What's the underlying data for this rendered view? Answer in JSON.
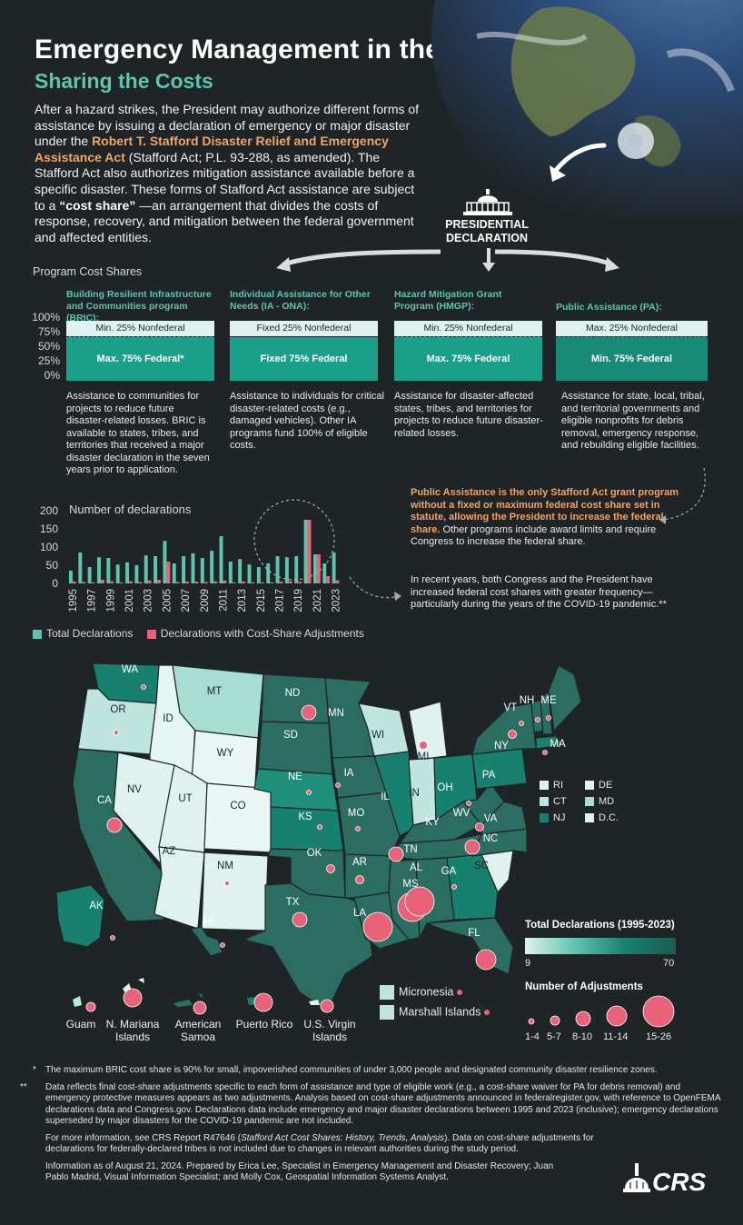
{
  "header": {
    "title": "Emergency Management in the U.S.",
    "subtitle": "Sharing the Costs"
  },
  "intro": {
    "p1": "After a hazard strikes, the President may authorize different forms of assistance by issuing a declaration of emergency or major disaster under the ",
    "act_name": "Robert T. Stafford Disaster Relief and Emergency Assistance Act",
    "p2": " (Stafford Act; P.L. 93-288, as amended). The Stafford Act also authorizes mitigation assistance available before a specific disaster. These forms of Stafford Act assistance are subject to a ",
    "cost_share": "“cost share”",
    "p3": " —an arrangement that divides the costs of response, recovery, and mitigation between the federal government and affected entities."
  },
  "declaration_label": "PRESIDENTIAL DECLARATION",
  "program_cost_shares": {
    "heading": "Program Cost Shares",
    "y_ticks": [
      "100%",
      "75%",
      "50%",
      "25%",
      "0%"
    ],
    "programs": [
      {
        "title": "Building Resilient Infrastructure and Communities program  (BRIC):",
        "top_label": "Min. 25% Nonfederal",
        "bottom_label": "Max. 75% Federal*",
        "federal_share": 75,
        "description": "Assistance to communities for projects to reduce future disaster-related losses. BRIC is available to states, tribes, and territories that received a major disaster declaration in the seven years prior to application."
      },
      {
        "title": "Individual Assistance for Other Needs (IA - ONA):",
        "top_label": "Fixed 25% Nonfederal",
        "bottom_label": "Fixed 75% Federal",
        "federal_share": 75,
        "description": "Assistance to individuals for critical disaster-related costs (e.g., damaged vehicles). Other IA programs fund 100% of eligible costs."
      },
      {
        "title": "Hazard Mitigation Grant Program (HMGP):",
        "top_label": "Min. 25% Nonfederal",
        "bottom_label": "Max. 75% Federal",
        "federal_share": 75,
        "description": "Assistance for disaster-affected states, tribes, and territories for projects to reduce future disaster-related losses."
      },
      {
        "title": "Public Assistance (PA):",
        "top_label": "Max. 25% Nonfederal",
        "bottom_label": "Min. 75% Federal",
        "federal_share": 75,
        "description": "Assistance for state, local, tribal, and territorial governments and eligible nonprofits for debris removal, emergency response, and rebuilding eligible facilities."
      }
    ]
  },
  "pa_note": {
    "highlight": "Public Assistance is the only Stafford Act grant program without a fixed or maximum federal cost share set in statute, allowing the President to increase the federal share.",
    "rest": " Other programs include award limits and require Congress to increase the federal share."
  },
  "recent_note": "In recent years, both Congress and the President have increased federal cost shares with greater frequency—particularly during the years of the COVID-19 pandemic.**",
  "chart_data": {
    "type": "bar",
    "title": "Number of declarations",
    "categories": [
      "1995",
      "1996",
      "1997",
      "1998",
      "1999",
      "2000",
      "2001",
      "2002",
      "2003",
      "2004",
      "2005",
      "2006",
      "2007",
      "2008",
      "2009",
      "2010",
      "2011",
      "2012",
      "2013",
      "2014",
      "2015",
      "2016",
      "2017",
      "2018",
      "2019",
      "2020",
      "2021",
      "2022",
      "2023"
    ],
    "x_tick_labels": [
      "1995",
      "1997",
      "1999",
      "2001",
      "2003",
      "2005",
      "2007",
      "2009",
      "2011",
      "2013",
      "2015",
      "2017",
      "2019",
      "2021",
      "2023"
    ],
    "series": [
      {
        "name": "Total Declarations",
        "color": "#5ec4ad",
        "values": [
          35,
          85,
          45,
          72,
          70,
          52,
          58,
          50,
          77,
          75,
          117,
          55,
          75,
          83,
          70,
          90,
          130,
          60,
          67,
          52,
          45,
          55,
          75,
          72,
          75,
          175,
          80,
          55,
          85
        ]
      },
      {
        "name": "Declarations with Cost-Share Adjustments",
        "color": "#e8627a",
        "values": [
          5,
          4,
          3,
          10,
          6,
          3,
          6,
          4,
          8,
          10,
          60,
          4,
          5,
          5,
          4,
          6,
          8,
          3,
          5,
          3,
          3,
          3,
          5,
          6,
          5,
          175,
          80,
          20,
          8
        ]
      }
    ],
    "y_ticks": [
      0,
      50,
      100,
      150,
      200
    ],
    "ylim": [
      0,
      200
    ],
    "legend_position": "bottom"
  },
  "map": {
    "states": [
      {
        "abbr": "WA",
        "adj": 1
      },
      {
        "abbr": "OR",
        "adj": 1
      },
      {
        "abbr": "CA",
        "adj": 3
      },
      {
        "abbr": "ID",
        "adj": 0
      },
      {
        "abbr": "NV",
        "adj": 0
      },
      {
        "abbr": "MT",
        "adj": 0
      },
      {
        "abbr": "WY",
        "adj": 0
      },
      {
        "abbr": "UT",
        "adj": 0
      },
      {
        "abbr": "AZ",
        "adj": 0
      },
      {
        "abbr": "CO",
        "adj": 0
      },
      {
        "abbr": "NM",
        "adj": 1
      },
      {
        "abbr": "ND",
        "adj": 3
      },
      {
        "abbr": "SD",
        "adj": 0
      },
      {
        "abbr": "NE",
        "adj": 1
      },
      {
        "abbr": "KS",
        "adj": 1
      },
      {
        "abbr": "OK",
        "adj": 2
      },
      {
        "abbr": "TX",
        "adj": 3
      },
      {
        "abbr": "MN",
        "adj": 0
      },
      {
        "abbr": "IA",
        "adj": 1
      },
      {
        "abbr": "MO",
        "adj": 1
      },
      {
        "abbr": "AR",
        "adj": 2
      },
      {
        "abbr": "LA",
        "adj": 5
      },
      {
        "abbr": "WI",
        "adj": 0
      },
      {
        "abbr": "IL",
        "adj": 0
      },
      {
        "abbr": "MS",
        "adj": 5
      },
      {
        "abbr": "MI",
        "adj": 2
      },
      {
        "abbr": "IN",
        "adj": 0
      },
      {
        "abbr": "KY",
        "adj": 0
      },
      {
        "abbr": "TN",
        "adj": 3
      },
      {
        "abbr": "AL",
        "adj": 5
      },
      {
        "abbr": "OH",
        "adj": 0
      },
      {
        "abbr": "GA",
        "adj": 1
      },
      {
        "abbr": "FL",
        "adj": 4
      },
      {
        "abbr": "SC",
        "adj": 0
      },
      {
        "abbr": "NC",
        "adj": 3
      },
      {
        "abbr": "VA",
        "adj": 2
      },
      {
        "abbr": "WV",
        "adj": 1
      },
      {
        "abbr": "PA",
        "adj": 0
      },
      {
        "abbr": "NY",
        "adj": 2
      },
      {
        "abbr": "VT",
        "adj": 1
      },
      {
        "abbr": "NH",
        "adj": 1
      },
      {
        "abbr": "ME",
        "adj": 1
      },
      {
        "abbr": "MA",
        "adj": 1
      },
      {
        "abbr": "AK",
        "adj": 1
      },
      {
        "abbr": "HI",
        "adj": 1
      }
    ],
    "small_states": [
      "RI",
      "DE",
      "CT",
      "MD",
      "NJ",
      "D.C."
    ],
    "territories": [
      "Guam",
      "N. Mariana Islands",
      "American Samoa",
      "Puerto Rico",
      "U.S. Virgin Islands"
    ],
    "freely_associated": [
      "Micronesia",
      "Marshall Islands"
    ]
  },
  "legend": {
    "total_title": "Total Declarations (1995-2023)",
    "total_min": "9",
    "total_max": "70",
    "adjust_title": "Number of Adjustments",
    "adjust_bins": [
      "1-4",
      "5-7",
      "8-10",
      "11-14",
      "15-26"
    ]
  },
  "footnotes": {
    "star_mark": "*",
    "star_text": "The maximum BRIC cost share is 90% for small, impoverished communities of under 3,000 people and designated community disaster resilience zones.",
    "dstar_mark": "**",
    "dstar_text": "Data reflects final cost-share adjustments specific to each form of assistance and type of eligible work (e.g., a cost-share waiver for PA for debris removal) and emergency protective measures appears as two adjustments. Analysis based on cost-share adjustments announced in federalregister.gov, with reference to OpenFEMA declarations data and Congress.gov. Declarations data include emergency and major disaster declarations between 1995 and 2023 (inclusive); emergency declarations superseded by major disasters for the COVID-19 pandemic are not included.",
    "more_info_a": "For more information, see CRS Report R47646 (",
    "more_info_report": "Stafford Act Cost Shares: History, Trends, Analysis",
    "more_info_b": "). Data on cost-share adjustments for declarations for federally-declared tribes is not included due to changes in relevant authorities during the study period.",
    "credits": "Information as of August 21, 2024. Prepared by Erica Lee, Specialist in Emergency Management and Disaster Recovery; Juan Pablo Madrid, Visual Information Specialist; and Molly Cox, Geospatial Information Systems Analyst."
  },
  "logo_text": "CRS"
}
